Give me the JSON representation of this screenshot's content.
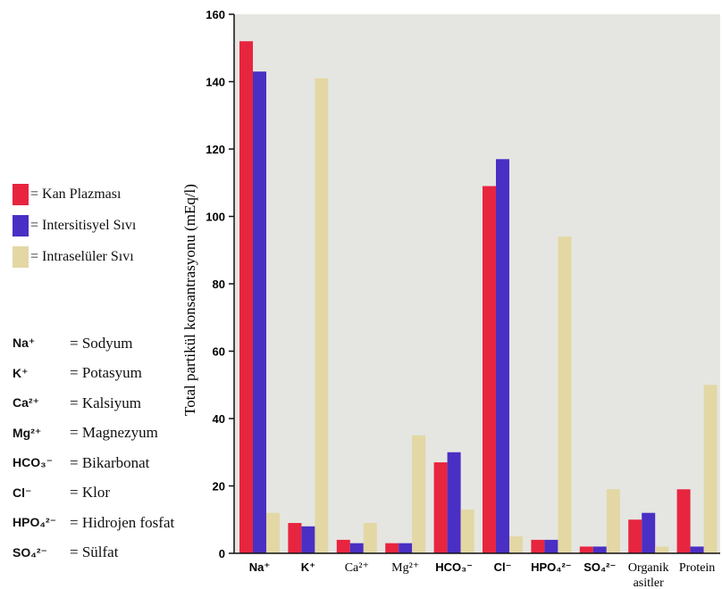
{
  "chart_data": {
    "type": "bar",
    "ylabel": "Total partikül konsantrasyonu (mEq/l)",
    "ylim": [
      0,
      160
    ],
    "yticks": [
      "0",
      "20",
      "40",
      "60",
      "80",
      "100",
      "120",
      "140",
      "160"
    ],
    "grid": false,
    "legend_position": "left",
    "categories": [
      "Na⁺",
      "K⁺",
      "Ca²⁺",
      "Mg²⁺",
      "HCO₃⁻",
      "Cl⁻",
      "HPO₄²⁻",
      "SO₄²⁻",
      "Organik asitler",
      "Protein"
    ],
    "series": [
      {
        "name": "= Kan Plazması",
        "color": "#e8253f",
        "values": [
          152,
          9,
          4,
          3,
          27,
          109,
          4,
          2,
          10,
          19
        ]
      },
      {
        "name": "= Intersitisyel Sıvı",
        "color": "#4a2fc4",
        "values": [
          143,
          8,
          3,
          3,
          30,
          117,
          4,
          2,
          12,
          2
        ]
      },
      {
        "name": "= Intraselüler Sıvı",
        "color": "#e3d7a4",
        "values": [
          12,
          141,
          9,
          35,
          13,
          5,
          94,
          19,
          2,
          50
        ]
      }
    ],
    "background_color": "#e5e6e1"
  },
  "glossary": [
    {
      "symbol": "Na⁺",
      "name": "= Sodyum"
    },
    {
      "symbol": "K⁺",
      "name": "= Potasyum"
    },
    {
      "symbol": "Ca²⁺",
      "name": "= Kalsiyum"
    },
    {
      "symbol": "Mg²⁺",
      "name": "= Magnezyum"
    },
    {
      "symbol": "HCO₃⁻",
      "name": "= Bikarbonat"
    },
    {
      "symbol": "Cl⁻",
      "name": "= Klor"
    },
    {
      "symbol": "HPO₄²⁻",
      "name": "= Hidrojen fosfat"
    },
    {
      "symbol": "SO₄²⁻",
      "name": "= Sülfat"
    }
  ]
}
